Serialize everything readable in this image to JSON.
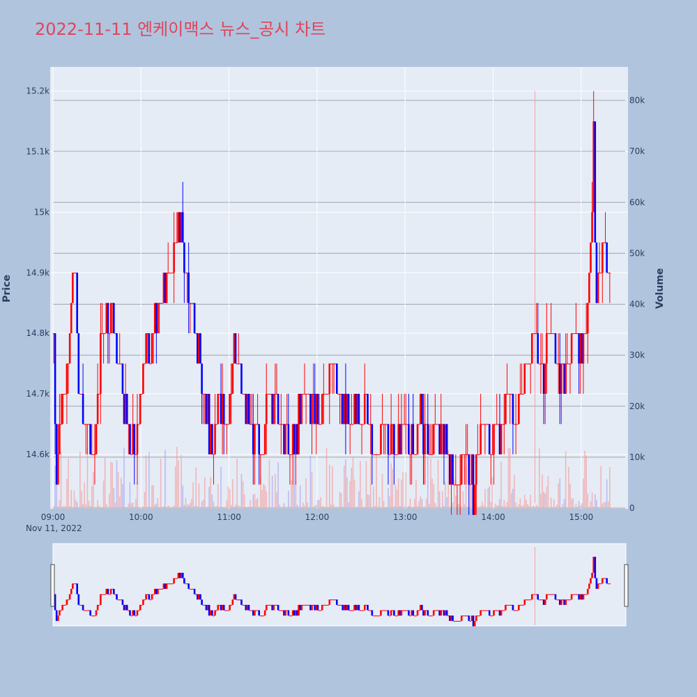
{
  "chart_data": {
    "type": "candlestick",
    "title": "2022-11-11 엔케이맥스 뉴스_공시 차트",
    "ylabel": "Price",
    "y2label": "Volume",
    "x_tick_labels": [
      "09:00",
      "10:00",
      "11:00",
      "12:00",
      "13:00",
      "14:00",
      "15:00"
    ],
    "x_date_label": "Nov 11, 2022",
    "y_ticks": [
      14600,
      14700,
      14800,
      14900,
      15000,
      15100,
      15200
    ],
    "y_tick_labels": [
      "14.6k",
      "14.7k",
      "14.8k",
      "14.9k",
      "15k",
      "15.1k",
      "15.2k"
    ],
    "y2_ticks": [
      0,
      10000,
      20000,
      30000,
      40000,
      50000,
      60000,
      70000,
      80000
    ],
    "y2_tick_labels": [
      "0",
      "10k",
      "20k",
      "30k",
      "40k",
      "50k",
      "60k",
      "70k",
      "80k"
    ],
    "xlim": [
      "09:00",
      "15:30"
    ],
    "ylim": [
      14510,
      15240
    ],
    "y2lim": [
      0,
      80000
    ],
    "up_color": "#ff0000",
    "down_color": "#0000ff",
    "grid": true,
    "rangeslider": true,
    "price_path": [
      {
        "t": "09:00",
        "p": 14800
      },
      {
        "t": "09:02",
        "p": 14550
      },
      {
        "t": "09:06",
        "p": 14700
      },
      {
        "t": "09:10",
        "p": 14750
      },
      {
        "t": "09:14",
        "p": 14950
      },
      {
        "t": "09:17",
        "p": 14700
      },
      {
        "t": "09:22",
        "p": 14650
      },
      {
        "t": "09:28",
        "p": 14600
      },
      {
        "t": "09:33",
        "p": 14800
      },
      {
        "t": "09:39",
        "p": 14850
      },
      {
        "t": "09:44",
        "p": 14750
      },
      {
        "t": "09:50",
        "p": 14650
      },
      {
        "t": "09:55",
        "p": 14600
      },
      {
        "t": "10:02",
        "p": 14750
      },
      {
        "t": "10:08",
        "p": 14800
      },
      {
        "t": "10:14",
        "p": 14850
      },
      {
        "t": "10:20",
        "p": 14900
      },
      {
        "t": "10:26",
        "p": 15000
      },
      {
        "t": "10:32",
        "p": 14900
      },
      {
        "t": "10:36",
        "p": 14800
      },
      {
        "t": "10:40",
        "p": 14750
      },
      {
        "t": "10:45",
        "p": 14650
      },
      {
        "t": "10:48",
        "p": 14600
      },
      {
        "t": "10:52",
        "p": 14700
      },
      {
        "t": "10:58",
        "p": 14650
      },
      {
        "t": "11:03",
        "p": 14750
      },
      {
        "t": "11:10",
        "p": 14700
      },
      {
        "t": "11:16",
        "p": 14650
      },
      {
        "t": "11:22",
        "p": 14600
      },
      {
        "t": "11:28",
        "p": 14700
      },
      {
        "t": "11:34",
        "p": 14650
      },
      {
        "t": "11:40",
        "p": 14600
      },
      {
        "t": "11:46",
        "p": 14650
      },
      {
        "t": "11:52",
        "p": 14700
      },
      {
        "t": "11:58",
        "p": 14650
      },
      {
        "t": "12:04",
        "p": 14700
      },
      {
        "t": "12:10",
        "p": 14750
      },
      {
        "t": "12:16",
        "p": 14700
      },
      {
        "t": "12:22",
        "p": 14650
      },
      {
        "t": "12:28",
        "p": 14700
      },
      {
        "t": "12:34",
        "p": 14650
      },
      {
        "t": "12:40",
        "p": 14600
      },
      {
        "t": "12:46",
        "p": 14650
      },
      {
        "t": "12:52",
        "p": 14600
      },
      {
        "t": "12:58",
        "p": 14650
      },
      {
        "t": "13:04",
        "p": 14600
      },
      {
        "t": "13:10",
        "p": 14650
      },
      {
        "t": "13:16",
        "p": 14600
      },
      {
        "t": "13:22",
        "p": 14650
      },
      {
        "t": "13:28",
        "p": 14600
      },
      {
        "t": "13:34",
        "p": 14550
      },
      {
        "t": "13:40",
        "p": 14600
      },
      {
        "t": "13:46",
        "p": 14550
      },
      {
        "t": "13:52",
        "p": 14650
      },
      {
        "t": "13:58",
        "p": 14600
      },
      {
        "t": "14:04",
        "p": 14650
      },
      {
        "t": "14:10",
        "p": 14700
      },
      {
        "t": "14:16",
        "p": 14650
      },
      {
        "t": "14:22",
        "p": 14750
      },
      {
        "t": "14:28",
        "p": 14800
      },
      {
        "t": "14:34",
        "p": 14750
      },
      {
        "t": "14:40",
        "p": 14800
      },
      {
        "t": "14:46",
        "p": 14700
      },
      {
        "t": "14:52",
        "p": 14750
      },
      {
        "t": "14:56",
        "p": 14800
      },
      {
        "t": "15:00",
        "p": 14750
      },
      {
        "t": "15:04",
        "p": 14850
      },
      {
        "t": "15:08",
        "p": 15100
      },
      {
        "t": "15:10",
        "p": 14850
      },
      {
        "t": "15:14",
        "p": 14950
      },
      {
        "t": "15:18",
        "p": 14900
      },
      {
        "t": "15:22",
        "p": 14950
      },
      {
        "t": "15:26",
        "p": 15000
      },
      {
        "t": "15:30",
        "p": 14950
      }
    ]
  }
}
